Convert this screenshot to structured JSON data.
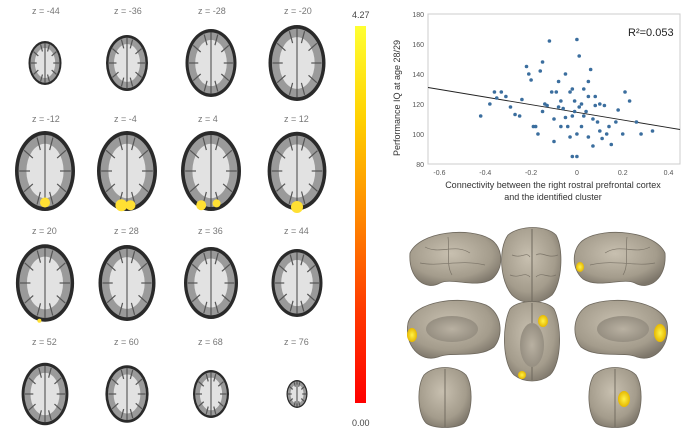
{
  "slice_labels": [
    "z = -44",
    "z = -36",
    "z = -28",
    "z = -20",
    "z = -12",
    "z = -4",
    "z = 4",
    "z = 12",
    "z = 20",
    "z = 28",
    "z = 36",
    "z = 44",
    "z = 52",
    "z = 60",
    "z = 68",
    "z = 76"
  ],
  "colorbar": {
    "max_label": "4.27",
    "min_label": "0.00",
    "colors": [
      "#ffff33",
      "#ffd000",
      "#ff8a00",
      "#ff3a00",
      "#ff0000"
    ]
  },
  "chart_data": {
    "type": "scatter",
    "ylabel": "Performance IQ at age 28/29",
    "xlabel_line1": "Connectivity between the right rostral prefrontal cortex",
    "xlabel_line2": "and the identified cluster",
    "annotation": "R²=0.053",
    "xlim": [
      -0.65,
      0.45
    ],
    "ylim": [
      80,
      180
    ],
    "xticks": [
      "-0.6",
      "-0.4",
      "-0.2",
      "0",
      "0.2",
      "0.4"
    ],
    "xtick_values": [
      -0.6,
      -0.4,
      -0.2,
      0,
      0.2,
      0.4
    ],
    "yticks": [
      "80",
      "100",
      "120",
      "140",
      "160",
      "180"
    ],
    "ytick_values": [
      80,
      100,
      120,
      140,
      160,
      180
    ],
    "grid": false,
    "point_color": "#3b6e9e",
    "fit_line": {
      "x": [
        -0.65,
        0.45
      ],
      "y": [
        131,
        103
      ]
    },
    "points": [
      [
        -0.42,
        112
      ],
      [
        -0.38,
        120
      ],
      [
        -0.36,
        128
      ],
      [
        -0.35,
        124
      ],
      [
        -0.33,
        128
      ],
      [
        -0.31,
        125
      ],
      [
        -0.29,
        118
      ],
      [
        -0.27,
        113
      ],
      [
        -0.25,
        112
      ],
      [
        -0.24,
        123
      ],
      [
        -0.22,
        145
      ],
      [
        -0.21,
        140
      ],
      [
        -0.2,
        136
      ],
      [
        -0.19,
        105
      ],
      [
        -0.18,
        105
      ],
      [
        -0.17,
        100
      ],
      [
        -0.16,
        142
      ],
      [
        -0.15,
        115
      ],
      [
        -0.14,
        120
      ],
      [
        -0.13,
        119
      ],
      [
        -0.12,
        162
      ],
      [
        -0.11,
        128
      ],
      [
        -0.1,
        95
      ],
      [
        -0.1,
        110
      ],
      [
        -0.09,
        128
      ],
      [
        -0.08,
        118
      ],
      [
        -0.08,
        135
      ],
      [
        -0.07,
        122
      ],
      [
        -0.07,
        105
      ],
      [
        -0.06,
        117
      ],
      [
        -0.05,
        111
      ],
      [
        -0.05,
        140
      ],
      [
        -0.04,
        105
      ],
      [
        -0.03,
        128
      ],
      [
        -0.03,
        98
      ],
      [
        -0.02,
        112
      ],
      [
        -0.02,
        130
      ],
      [
        -0.01,
        115
      ],
      [
        -0.01,
        122
      ],
      [
        0,
        100
      ],
      [
        0,
        163
      ],
      [
        0.01,
        118
      ],
      [
        0.01,
        152
      ],
      [
        0.02,
        120
      ],
      [
        0.02,
        105
      ],
      [
        0.03,
        130
      ],
      [
        0.03,
        112
      ],
      [
        0.04,
        115
      ],
      [
        0.05,
        125
      ],
      [
        0.05,
        98
      ],
      [
        0.06,
        143
      ],
      [
        0.07,
        110
      ],
      [
        0.07,
        92
      ],
      [
        0.08,
        119
      ],
      [
        0.08,
        125
      ],
      [
        0.09,
        108
      ],
      [
        0.1,
        102
      ],
      [
        0.11,
        97
      ],
      [
        0.12,
        119
      ],
      [
        0.13,
        100
      ],
      [
        0.14,
        105
      ],
      [
        0.15,
        93
      ],
      [
        0.17,
        108
      ],
      [
        0.18,
        116
      ],
      [
        0.2,
        100
      ],
      [
        0.21,
        128
      ],
      [
        0.23,
        122
      ],
      [
        0.26,
        108
      ],
      [
        0.28,
        100
      ],
      [
        0.33,
        102
      ],
      [
        -0.15,
        148
      ],
      [
        0.05,
        135
      ],
      [
        -0.02,
        85
      ],
      [
        0,
        85
      ],
      [
        0.1,
        120
      ]
    ]
  }
}
